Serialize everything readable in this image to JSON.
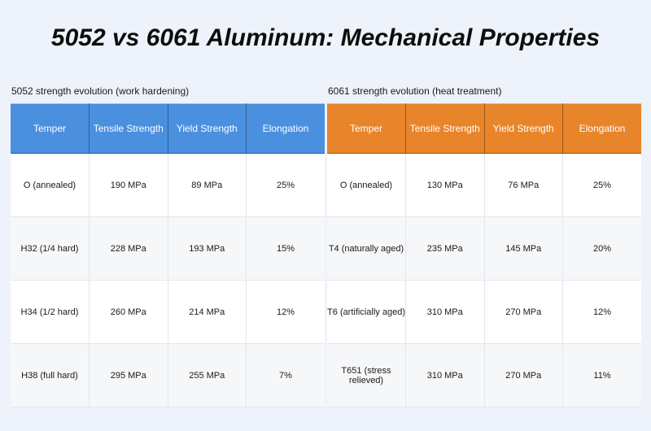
{
  "title": "5052 vs 6061 Aluminum: Mechanical Properties",
  "tables": [
    {
      "caption": "5052 strength evolution (work hardening)",
      "header_color": "#4a90df",
      "columns": [
        "Temper",
        "Tensile Strength",
        "Yield Strength",
        "Elongation"
      ],
      "rows": [
        [
          "O (annealed)",
          "190 MPa",
          "89 MPa",
          "25%"
        ],
        [
          "H32 (1/4 hard)",
          "228 MPa",
          "193 MPa",
          "15%"
        ],
        [
          "H34 (1/2 hard)",
          "260 MPa",
          "214 MPa",
          "12%"
        ],
        [
          "H38 (full hard)",
          "295 MPa",
          "255 MPa",
          "7%"
        ]
      ]
    },
    {
      "caption": "6061 strength evolution (heat treatment)",
      "header_color": "#e8852b",
      "columns": [
        "Temper",
        "Tensile Strength",
        "Yield Strength",
        "Elongation"
      ],
      "rows": [
        [
          "O (annealed)",
          "130 MPa",
          "76 MPa",
          "25%"
        ],
        [
          "T4 (naturally aged)",
          "235 MPa",
          "145 MPa",
          "20%"
        ],
        [
          "T6 (artificially aged)",
          "310 MPa",
          "270 MPa",
          "12%"
        ],
        [
          "T651 (stress relieved)",
          "310 MPa",
          "270 MPa",
          "11%"
        ]
      ]
    }
  ]
}
